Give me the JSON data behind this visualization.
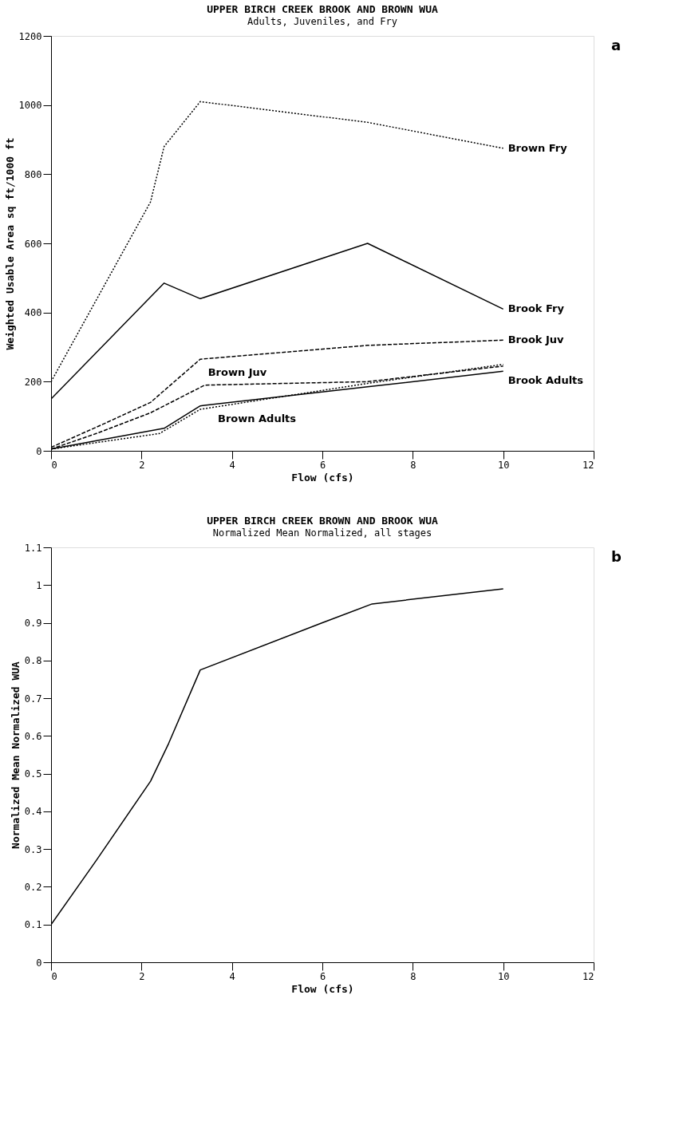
{
  "chart_data": [
    {
      "type": "line",
      "title": "UPPER BIRCH CREEK BROOK AND BROWN WUA",
      "subtitle": "Adults, Juveniles, and Fry",
      "xlabel": "Flow (cfs)",
      "ylabel": "Weighted Usable Area sq ft/1000 ft",
      "annotations": [
        "a"
      ],
      "xlim": [
        0,
        12
      ],
      "xticks": [
        0,
        2,
        4,
        6,
        8,
        10,
        12
      ],
      "ylim": [
        0,
        1200
      ],
      "yticks": [
        0,
        200,
        400,
        600,
        800,
        1000,
        1200
      ],
      "grid": false,
      "legend": false,
      "series": [
        {
          "name": "Brown Fry",
          "color": "#000000",
          "line_style": "dotted",
          "x": [
            0,
            2.2,
            2.5,
            3.3,
            7,
            10
          ],
          "values": [
            200,
            720,
            880,
            1010,
            950,
            875
          ]
        },
        {
          "name": "Brook Fry",
          "color": "#000000",
          "line_style": "solid",
          "x": [
            0,
            2.5,
            3.3,
            7,
            10
          ],
          "values": [
            150,
            485,
            440,
            600,
            410
          ]
        },
        {
          "name": "Brook Juv",
          "color": "#000000",
          "line_style": "dashed",
          "x": [
            0,
            1.2,
            2.2,
            3.3,
            7,
            10
          ],
          "values": [
            10,
            80,
            140,
            265,
            305,
            320
          ]
        },
        {
          "name": "Brown Juv",
          "color": "#000000",
          "line_style": "dashed",
          "x": [
            0,
            1,
            2.2,
            3.4,
            7,
            10
          ],
          "values": [
            5,
            50,
            110,
            190,
            200,
            245
          ]
        },
        {
          "name": "Brook Adults",
          "color": "#000000",
          "line_style": "solid",
          "x": [
            0,
            2.5,
            3.3,
            7,
            10
          ],
          "values": [
            5,
            65,
            130,
            185,
            230
          ]
        },
        {
          "name": "Brown Adults",
          "color": "#000000",
          "line_style": "dotted",
          "x": [
            0,
            2.4,
            3.3,
            7,
            10
          ],
          "values": [
            5,
            50,
            120,
            195,
            250
          ]
        }
      ]
    },
    {
      "type": "line",
      "title": "UPPER BIRCH CREEK BROWN AND BROOK WUA",
      "subtitle": "Normalized Mean Normalized, all stages",
      "xlabel": "Flow (cfs)",
      "ylabel": "Normalized Mean Normalized WUA",
      "annotations": [
        "b"
      ],
      "xlim": [
        0,
        12
      ],
      "xticks": [
        0,
        2,
        4,
        6,
        8,
        10,
        12
      ],
      "ylim": [
        0,
        1.1
      ],
      "yticks": [
        0,
        0.1,
        0.2,
        0.3,
        0.4,
        0.5,
        0.6,
        0.7,
        0.8,
        0.9,
        1,
        1.1
      ],
      "grid": false,
      "legend": false,
      "series": [
        {
          "color": "#000000",
          "line_style": "solid",
          "x": [
            0,
            1,
            2.2,
            2.6,
            3.3,
            6,
            7.1,
            10
          ],
          "values": [
            0.1,
            0.27,
            0.48,
            0.58,
            0.775,
            0.9,
            0.95,
            0.99
          ]
        }
      ]
    }
  ]
}
